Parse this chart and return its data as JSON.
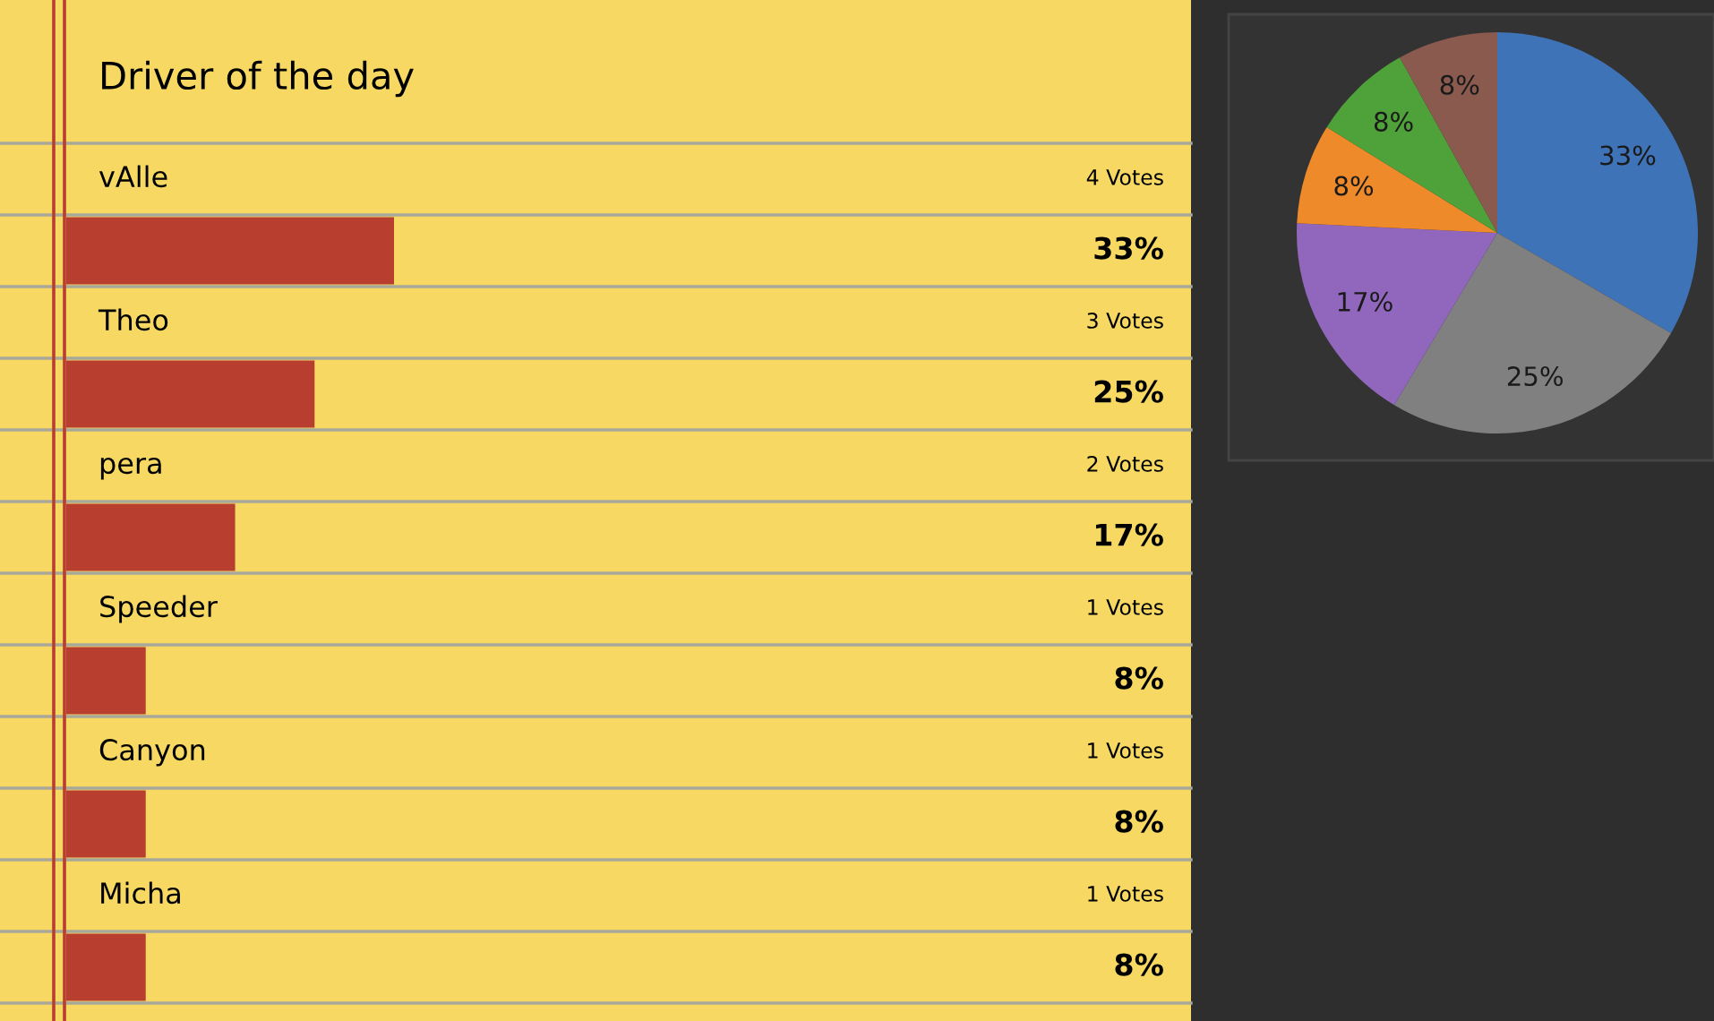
{
  "chart_data": [
    {
      "type": "bar",
      "orientation": "horizontal",
      "title": "Driver of the day",
      "categories": [
        "vAlle",
        "Theo",
        "pera",
        "Speeder",
        "Canyon",
        "Micha"
      ],
      "values": [
        33,
        25,
        17,
        8,
        8,
        8
      ],
      "color": "#b83e30",
      "value_labels": [
        "33%",
        "25%",
        "17%",
        "8%",
        "8%",
        "8%"
      ],
      "annotations": [
        "4 Votes",
        "3 Votes",
        "2 Votes",
        "1 Votes",
        "1 Votes",
        "1 Votes"
      ],
      "legend": false
    },
    {
      "type": "pie",
      "categories": [
        null,
        null,
        null,
        null,
        null,
        null
      ],
      "values": [
        33,
        25,
        17,
        8,
        8,
        8
      ],
      "colors": [
        "#3f73b8",
        "#808080",
        "#9067bd",
        "#ef8a2a",
        "#4fa23a",
        "#8a5a4f"
      ],
      "value_labels": [
        "33%",
        "25%",
        "17%",
        "8%",
        "8%",
        "8%"
      ]
    }
  ]
}
